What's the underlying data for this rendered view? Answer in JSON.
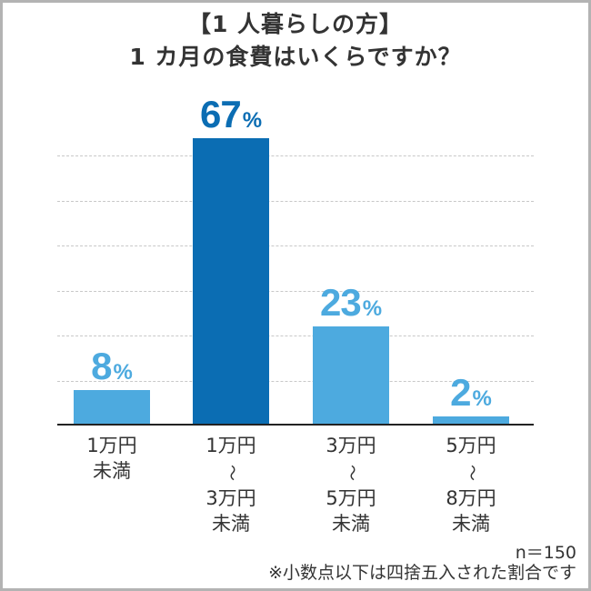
{
  "header": {
    "title_line1": "【1 人暮らしの方】",
    "title_line2": "1 カ月の食費はいくらですか？"
  },
  "colors": {
    "highlight_bar": "#0b6db3",
    "default_bar": "#4daadf",
    "text": "#333333",
    "gridline": "#c8c8c8",
    "border": "#b3b3b3"
  },
  "bars": [
    {
      "value": "8",
      "unit": "%",
      "label_lines": [
        "1万円",
        "未満"
      ]
    },
    {
      "value": "67",
      "unit": "%",
      "label_lines": [
        "1万円",
        "〜",
        "3万円",
        "未満"
      ]
    },
    {
      "value": "23",
      "unit": "%",
      "label_lines": [
        "3万円",
        "〜",
        "5万円",
        "未満"
      ]
    },
    {
      "value": "2",
      "unit": "%",
      "label_lines": [
        "5万円",
        "〜",
        "8万円",
        "未満"
      ]
    }
  ],
  "footer": {
    "sample_size": "n＝150",
    "note": "※小数点以下は四捨五入された割合です"
  },
  "chart_data": {
    "type": "bar",
    "title": "【1 人暮らしの方】1 カ月の食費はいくらですか？",
    "categories": [
      "1万円未満",
      "1万円〜3万円未満",
      "3万円〜5万円未満",
      "5万円〜8万円未満"
    ],
    "values": [
      8,
      67,
      23,
      2
    ],
    "unit": "%",
    "xlabel": "",
    "ylabel": "",
    "ylim": [
      0,
      70
    ],
    "grid": true,
    "highlighted_category": "1万円〜3万円未満",
    "sample_size": 150,
    "annotation": "※小数点以下は四捨五入された割合です"
  }
}
